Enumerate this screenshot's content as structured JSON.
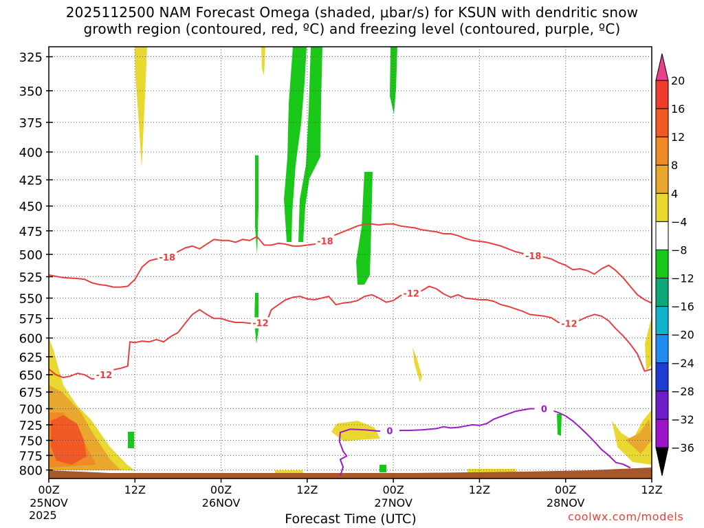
{
  "title": {
    "line1": "2025112500 NAM Forecast Omega (shaded, μbar/s) for KSUN with dendritic snow",
    "line2": "growth region (contoured, red, ºC) and freezing level (contoured, purple, ºC)"
  },
  "chart_data": {
    "type": "heatmap",
    "title": "2025112500 NAM Forecast Omega (shaded, μbar/s) for KSUN with dendritic snow growth region (contoured, red, ºC) and freezing level (contoured, purple, ºC)",
    "xlabel": "Forecast Time (UTC)",
    "ylabel": "",
    "x_unit": "forecast hour from 2025112500",
    "xlim": [
      0,
      84
    ],
    "y_scale": "log",
    "ylim": [
      815,
      318
    ],
    "y_unit": "hPa",
    "x_ticks": [
      {
        "hour": 0,
        "label": "00Z",
        "sub": "25NOV"
      },
      {
        "hour": 12,
        "label": "12Z",
        "sub": ""
      },
      {
        "hour": 24,
        "label": "00Z",
        "sub": "26NOV"
      },
      {
        "hour": 36,
        "label": "12Z",
        "sub": ""
      },
      {
        "hour": 48,
        "label": "00Z",
        "sub": "27NOV"
      },
      {
        "hour": 60,
        "label": "12Z",
        "sub": ""
      },
      {
        "hour": 72,
        "label": "00Z",
        "sub": "28NOV"
      },
      {
        "hour": 84,
        "label": "12Z",
        "sub": ""
      }
    ],
    "year_label": "2025",
    "y_ticks": [
      325,
      350,
      375,
      400,
      425,
      450,
      475,
      500,
      525,
      550,
      575,
      600,
      625,
      650,
      675,
      700,
      725,
      750,
      775,
      800
    ],
    "grid": true,
    "colorbar": {
      "labels": [
        "20",
        "16",
        "12",
        "8",
        "4",
        "−4",
        "−8",
        "−12",
        "−16",
        "−20",
        "−24",
        "−28",
        "−32",
        "−36"
      ],
      "colors": [
        "#e8408a",
        "#ef3b2c",
        "#f15a24",
        "#f08a27",
        "#e9a82d",
        "#e8d830",
        "#ffffff",
        "#19c819",
        "#0ca878",
        "#10b4c8",
        "#1e8cf0",
        "#1e3cd2",
        "#6e1ec8",
        "#9b14c8",
        "#a0a0a0",
        "#000000"
      ]
    },
    "series": [
      {
        "name": "-18",
        "color": "#ec3d3d",
        "points": [
          [
            0,
            523
          ],
          [
            2,
            526
          ],
          [
            4,
            527
          ],
          [
            5,
            528
          ],
          [
            6,
            532
          ],
          [
            7,
            534
          ],
          [
            8,
            535
          ],
          [
            9,
            537
          ],
          [
            10,
            537
          ],
          [
            11,
            536
          ],
          [
            12,
            528
          ],
          [
            13,
            514
          ],
          [
            14,
            507
          ],
          [
            15,
            505
          ],
          [
            16,
            505
          ],
          [
            17,
            501
          ],
          [
            18,
            497
          ],
          [
            19,
            493
          ],
          [
            20,
            491
          ],
          [
            21,
            494
          ],
          [
            22,
            489
          ],
          [
            23,
            484
          ],
          [
            24,
            485
          ],
          [
            25,
            485
          ],
          [
            26,
            487
          ],
          [
            27,
            484
          ],
          [
            28,
            485
          ],
          [
            29,
            481
          ],
          [
            30,
            490
          ],
          [
            31,
            490
          ],
          [
            32,
            488
          ],
          [
            33,
            489
          ],
          [
            34,
            491
          ],
          [
            35,
            491
          ],
          [
            36,
            490
          ],
          [
            37,
            489
          ],
          [
            38,
            488
          ],
          [
            39,
            483
          ],
          [
            40,
            479
          ],
          [
            41,
            476
          ],
          [
            42,
            473
          ],
          [
            43,
            470
          ],
          [
            44,
            468
          ],
          [
            45,
            468
          ],
          [
            46,
            469
          ],
          [
            47,
            468
          ],
          [
            48,
            468
          ],
          [
            49,
            470
          ],
          [
            50,
            471
          ],
          [
            51,
            472
          ],
          [
            52,
            474
          ],
          [
            53,
            475
          ],
          [
            54,
            476
          ],
          [
            55,
            478
          ],
          [
            56,
            478
          ],
          [
            57,
            480
          ],
          [
            58,
            483
          ],
          [
            59,
            485
          ],
          [
            60,
            486
          ],
          [
            61,
            487
          ],
          [
            62,
            489
          ],
          [
            63,
            491
          ],
          [
            64,
            494
          ],
          [
            65,
            497
          ],
          [
            66,
            499
          ],
          [
            67,
            501
          ],
          [
            68,
            502
          ],
          [
            69,
            503
          ],
          [
            70,
            505
          ],
          [
            71,
            509
          ],
          [
            72,
            512
          ],
          [
            73,
            517
          ],
          [
            74,
            516
          ],
          [
            75,
            518
          ],
          [
            76,
            522
          ],
          [
            77,
            516
          ],
          [
            78,
            512
          ],
          [
            79,
            518
          ],
          [
            80,
            526
          ],
          [
            81,
            536
          ],
          [
            82,
            546
          ],
          [
            83,
            552
          ],
          [
            84,
            556
          ]
        ],
        "label_hours": [
          16.5,
          38.5,
          67.5
        ]
      },
      {
        "name": "-12",
        "color": "#ec3d3d",
        "points": [
          [
            0,
            642
          ],
          [
            1,
            650
          ],
          [
            2,
            654
          ],
          [
            3,
            652
          ],
          [
            4,
            648
          ],
          [
            5,
            650
          ],
          [
            6,
            656
          ],
          [
            7,
            655
          ],
          [
            8,
            648
          ],
          [
            9,
            643
          ],
          [
            10,
            641
          ],
          [
            11,
            638
          ],
          [
            11.3,
            605
          ],
          [
            12,
            606
          ],
          [
            13,
            604
          ],
          [
            14,
            605
          ],
          [
            15,
            602
          ],
          [
            16,
            605
          ],
          [
            17,
            598
          ],
          [
            18,
            593
          ],
          [
            19,
            581
          ],
          [
            20,
            570
          ],
          [
            21,
            564
          ],
          [
            22,
            570
          ],
          [
            23,
            575
          ],
          [
            24,
            575
          ],
          [
            25,
            578
          ],
          [
            26,
            580
          ],
          [
            27,
            580
          ],
          [
            28,
            581
          ],
          [
            29,
            581
          ],
          [
            30,
            580
          ],
          [
            30.5,
            576
          ],
          [
            31,
            564
          ],
          [
            32,
            558
          ],
          [
            33,
            552
          ],
          [
            34,
            549
          ],
          [
            35,
            548
          ],
          [
            36,
            551
          ],
          [
            37,
            552
          ],
          [
            38,
            550
          ],
          [
            39,
            548
          ],
          [
            40,
            558
          ],
          [
            41,
            556
          ],
          [
            42,
            555
          ],
          [
            43,
            553
          ],
          [
            44,
            548
          ],
          [
            45,
            546
          ],
          [
            46,
            550
          ],
          [
            47,
            555
          ],
          [
            48,
            553
          ],
          [
            49,
            547
          ],
          [
            50,
            545
          ],
          [
            51,
            543
          ],
          [
            52,
            541
          ],
          [
            53,
            536
          ],
          [
            54,
            539
          ],
          [
            55,
            545
          ],
          [
            56,
            549
          ],
          [
            57,
            546
          ],
          [
            58,
            550
          ],
          [
            59,
            551
          ],
          [
            60,
            552
          ],
          [
            61,
            552
          ],
          [
            62,
            554
          ],
          [
            63,
            558
          ],
          [
            64,
            560
          ],
          [
            65,
            563
          ],
          [
            66,
            566
          ],
          [
            67,
            570
          ],
          [
            68,
            571
          ],
          [
            69,
            572
          ],
          [
            70,
            574
          ],
          [
            71,
            580
          ],
          [
            72,
            580
          ],
          [
            73,
            583
          ],
          [
            74,
            577
          ],
          [
            75,
            573
          ],
          [
            76,
            570
          ],
          [
            77,
            572
          ],
          [
            78,
            578
          ],
          [
            79,
            588
          ],
          [
            80,
            597
          ],
          [
            81,
            608
          ],
          [
            82,
            621
          ],
          [
            83,
            645
          ],
          [
            84,
            642
          ]
        ],
        "label_hours": [
          7.7,
          29.5,
          50.5,
          72.5
        ]
      },
      {
        "name": "0",
        "color": "#9b19c8",
        "points": [
          [
            40.6,
            810
          ],
          [
            41,
            795
          ],
          [
            40.6,
            782
          ],
          [
            41.5,
            776
          ],
          [
            41,
            768
          ],
          [
            40.5,
            752
          ],
          [
            40.6,
            737
          ],
          [
            42,
            732
          ],
          [
            44,
            733
          ],
          [
            46,
            735
          ],
          [
            48,
            734
          ],
          [
            50,
            734
          ],
          [
            52,
            733
          ],
          [
            54,
            731
          ],
          [
            55,
            728
          ],
          [
            56,
            730
          ],
          [
            57,
            729
          ],
          [
            58,
            727
          ],
          [
            59,
            725
          ],
          [
            60,
            726
          ],
          [
            61,
            723
          ],
          [
            62,
            716
          ],
          [
            63,
            712
          ],
          [
            64,
            708
          ],
          [
            65,
            704
          ],
          [
            66,
            702
          ],
          [
            67,
            700
          ],
          [
            68,
            700
          ],
          [
            69,
            700
          ],
          [
            70,
            702
          ],
          [
            71,
            706
          ],
          [
            72,
            711
          ],
          [
            73,
            719
          ],
          [
            74,
            729
          ],
          [
            75,
            740
          ],
          [
            76,
            752
          ],
          [
            77,
            765
          ],
          [
            78,
            775
          ],
          [
            79,
            787
          ],
          [
            80,
            790
          ],
          [
            81,
            796
          ]
        ],
        "label_hours": [
          47.5,
          69.0
        ]
      }
    ]
  },
  "credit": "coolwx.com/models"
}
